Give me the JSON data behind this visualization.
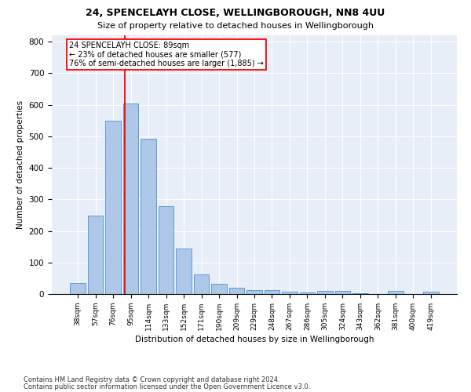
{
  "title1": "24, SPENCELAYH CLOSE, WELLINGBOROUGH, NN8 4UU",
  "title2": "Size of property relative to detached houses in Wellingborough",
  "xlabel": "Distribution of detached houses by size in Wellingborough",
  "ylabel": "Number of detached properties",
  "categories": [
    "38sqm",
    "57sqm",
    "76sqm",
    "95sqm",
    "114sqm",
    "133sqm",
    "152sqm",
    "171sqm",
    "190sqm",
    "209sqm",
    "229sqm",
    "248sqm",
    "267sqm",
    "286sqm",
    "305sqm",
    "324sqm",
    "343sqm",
    "362sqm",
    "381sqm",
    "400sqm",
    "419sqm"
  ],
  "values": [
    35,
    248,
    548,
    603,
    493,
    278,
    145,
    63,
    33,
    20,
    13,
    13,
    8,
    5,
    10,
    10,
    3,
    1,
    10,
    1,
    8
  ],
  "bar_color": "#aec6e8",
  "bar_edge_color": "#5a9fd4",
  "red_line_index": 2.68,
  "annotation_line1": "24 SPENCELAYH CLOSE: 89sqm",
  "annotation_line2": "← 23% of detached houses are smaller (577)",
  "annotation_line3": "76% of semi-detached houses are larger (1,885) →",
  "ylim": [
    0,
    820
  ],
  "yticks": [
    0,
    100,
    200,
    300,
    400,
    500,
    600,
    700,
    800
  ],
  "background_color": "#e8eef8",
  "footnote1": "Contains HM Land Registry data © Crown copyright and database right 2024.",
  "footnote2": "Contains public sector information licensed under the Open Government Licence v3.0."
}
